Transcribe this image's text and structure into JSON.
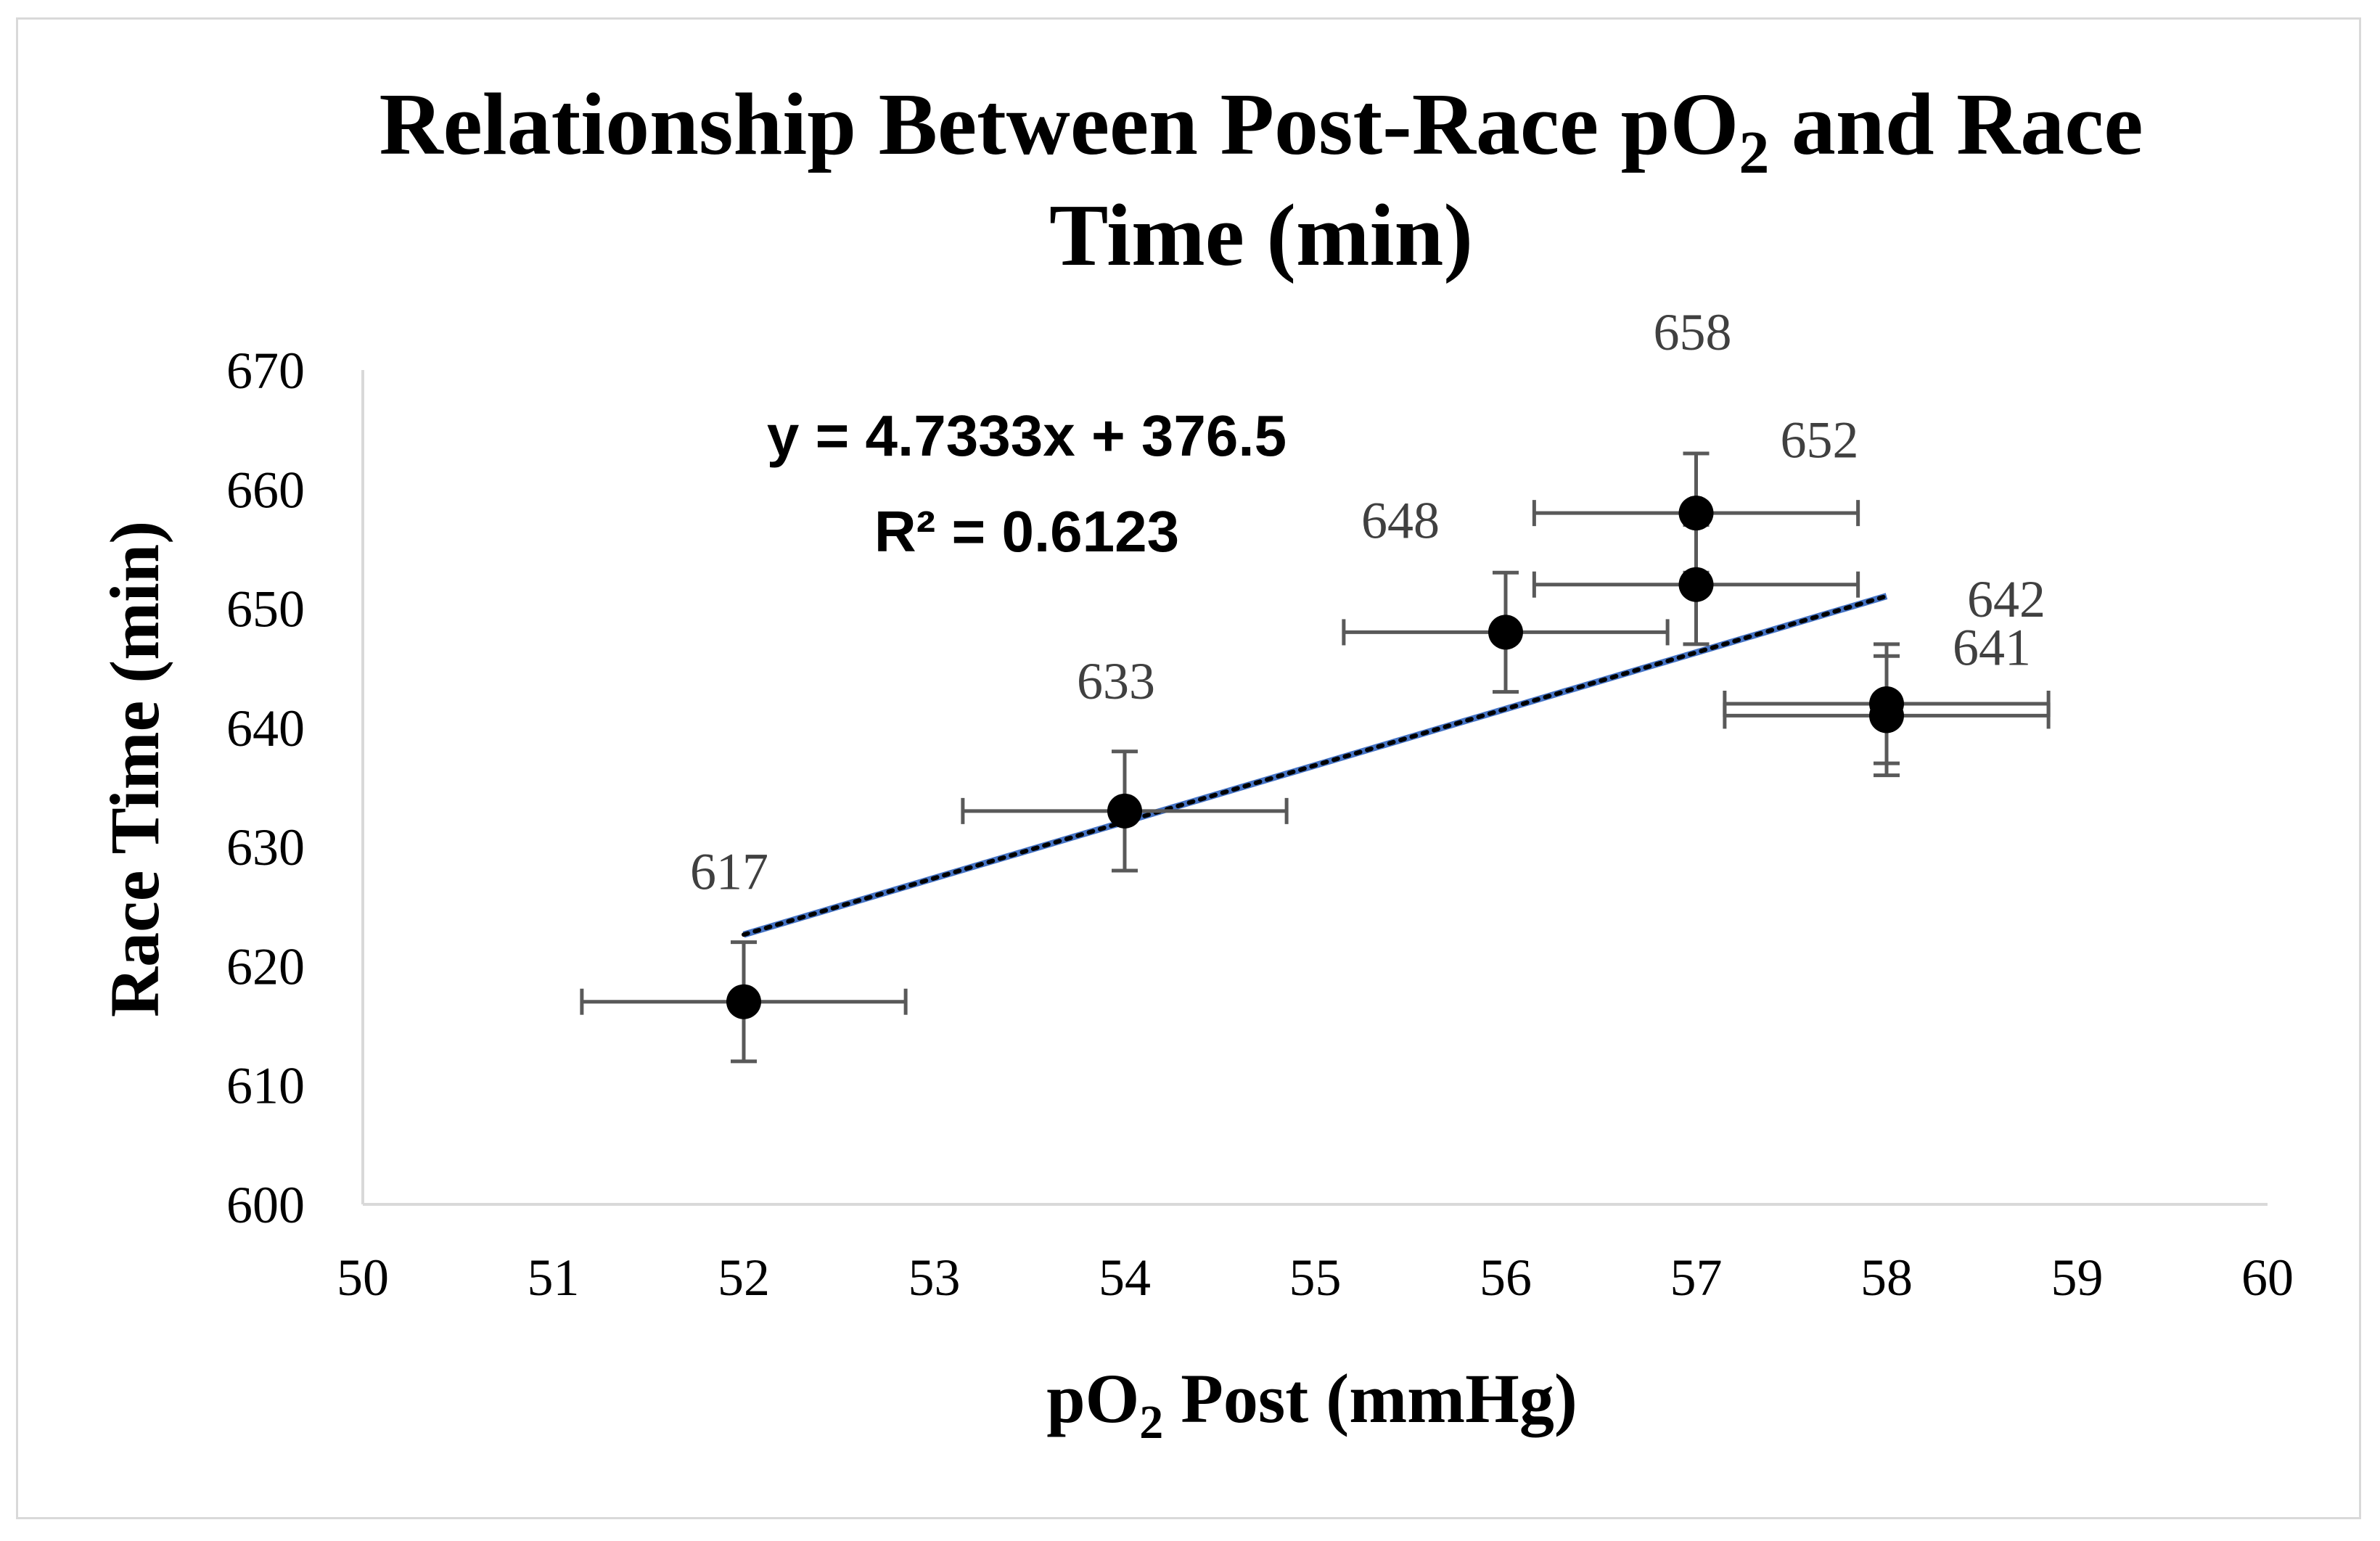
{
  "chart_data": {
    "type": "scatter",
    "title_line1_prefix": "Relationship Between Post-Race pO",
    "title_subscript": "2",
    "title_line1_suffix": " and Race",
    "title_line2": "Time (min)",
    "xlabel_prefix": "pO",
    "xlabel_subscript": "2",
    "xlabel_suffix": " Post (mmHg)",
    "ylabel": "Race Time (min)",
    "xlim": [
      50,
      60
    ],
    "ylim": [
      600,
      670
    ],
    "xticks": [
      "50",
      "51",
      "52",
      "53",
      "54",
      "55",
      "56",
      "57",
      "58",
      "59",
      "60"
    ],
    "yticks": [
      "600",
      "610",
      "620",
      "630",
      "640",
      "650",
      "660",
      "670"
    ],
    "points": [
      {
        "x": 52,
        "y": 617,
        "label": "617",
        "xerr": 0.85,
        "yerr": 5
      },
      {
        "x": 54,
        "y": 633,
        "label": "633",
        "xerr": 0.85,
        "yerr": 5
      },
      {
        "x": 56,
        "y": 648,
        "label": "648",
        "xerr": 0.85,
        "yerr": 5
      },
      {
        "x": 57,
        "y": 658,
        "label": "658",
        "xerr": 0.85,
        "yerr": 5
      },
      {
        "x": 57,
        "y": 652,
        "label": "652",
        "xerr": 0.85,
        "yerr": 5
      },
      {
        "x": 58,
        "y": 641,
        "label": "641",
        "xerr": 0.85,
        "yerr": 5
      },
      {
        "x": 58,
        "y": 642,
        "label": "642",
        "xerr": 0.85,
        "yerr": 5
      }
    ],
    "trendline": {
      "slope": 4.7333,
      "intercept": 376.5,
      "x_range": [
        52,
        58
      ],
      "equation": "y = 4.7333x + 376.5",
      "r_squared": "R² = 0.6123",
      "color": "#4472c4"
    },
    "colors": {
      "marker": "#000000",
      "error_bar": "#595959",
      "axis": "#d9d9d9",
      "label": "#404040"
    }
  }
}
